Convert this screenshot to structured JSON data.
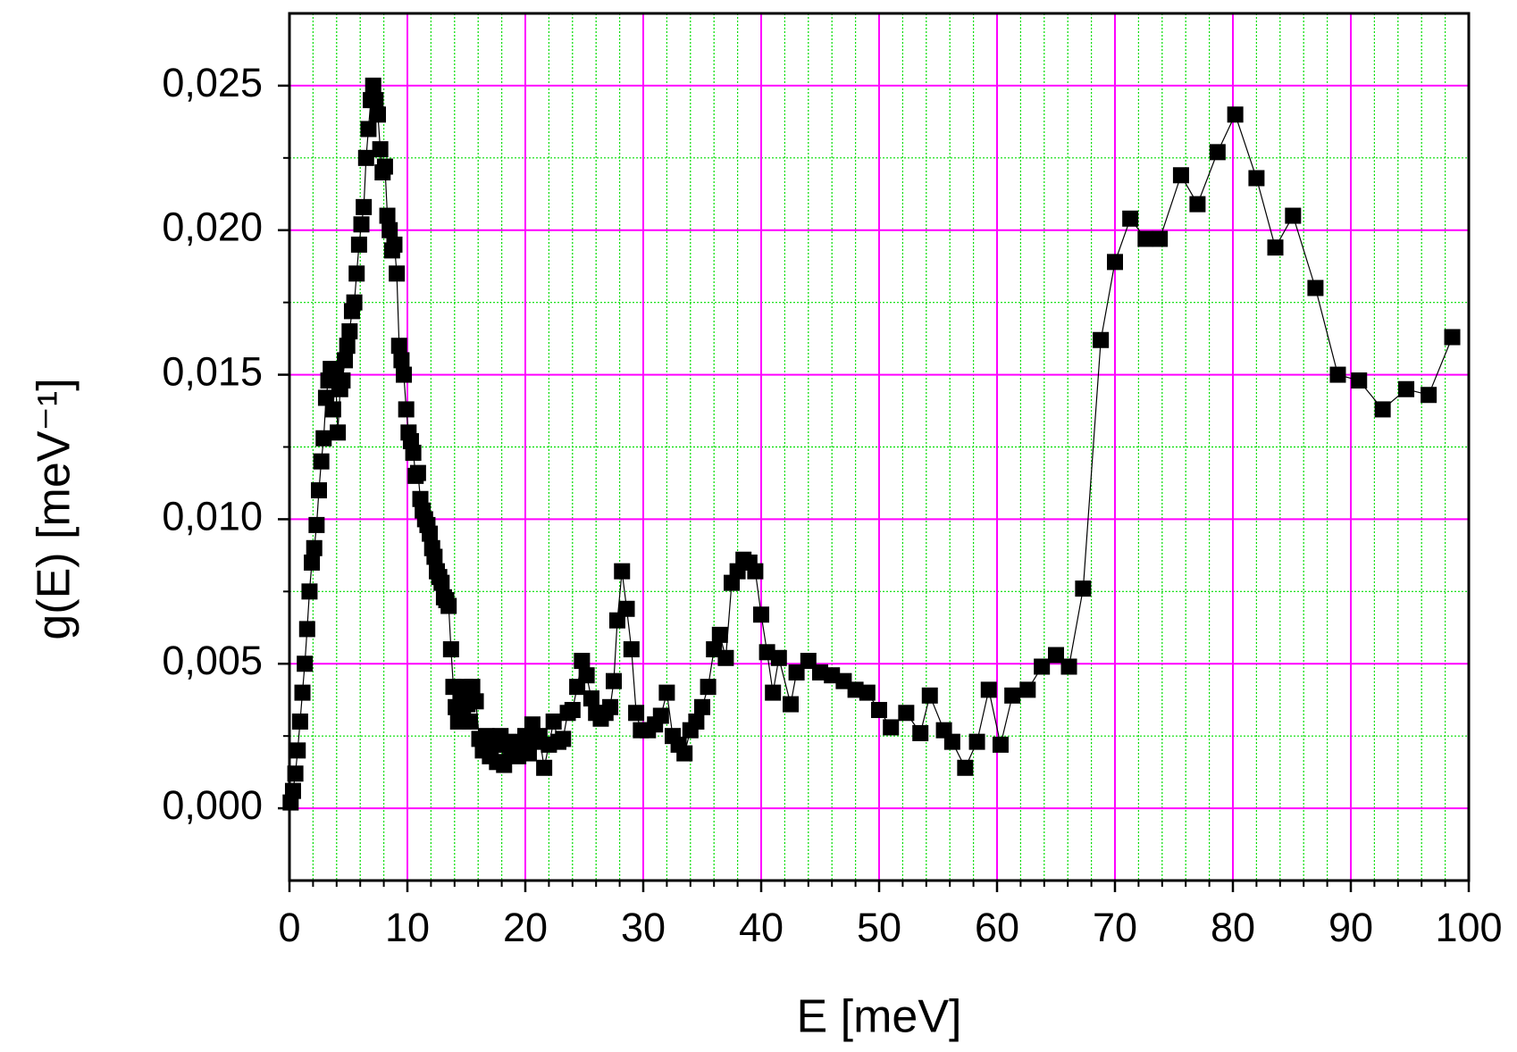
{
  "chart_data": {
    "type": "scatter",
    "xlabel": "E [meV]",
    "ylabel": "g(E) [meV⁻¹]",
    "xlim": [
      0,
      100
    ],
    "ylim": [
      -0.0025,
      0.0275
    ],
    "xticks": [
      0,
      10,
      20,
      30,
      40,
      50,
      60,
      70,
      80,
      90,
      100
    ],
    "yticks": [
      {
        "value": 0,
        "label": "0,000"
      },
      {
        "value": 0.005,
        "label": "0,005"
      },
      {
        "value": 0.01,
        "label": "0,010"
      },
      {
        "value": 0.015,
        "label": "0,015"
      },
      {
        "value": 0.02,
        "label": "0,020"
      },
      {
        "value": 0.025,
        "label": "0,025"
      }
    ],
    "grid": true,
    "grid_color": "#ff00ff",
    "minor_grid_color": "#00dd00",
    "minor_per_major_x": 5,
    "minor_per_major_y": 2,
    "series": [
      {
        "color": "#000000",
        "x": [
          0.1,
          0.3,
          0.5,
          0.7,
          0.9,
          1.1,
          1.3,
          1.5,
          1.7,
          1.9,
          2.1,
          2.3,
          2.5,
          2.7,
          2.9,
          3.1,
          3.3,
          3.5,
          3.7,
          3.9,
          4.1,
          4.3,
          4.5,
          4.7,
          4.9,
          5.1,
          5.3,
          5.5,
          5.7,
          5.9,
          6.1,
          6.3,
          6.5,
          6.7,
          6.9,
          7.1,
          7.3,
          7.5,
          7.7,
          7.9,
          8.1,
          8.3,
          8.5,
          8.7,
          8.9,
          9.1,
          9.3,
          9.5,
          9.7,
          9.9,
          10.1,
          10.3,
          10.5,
          10.7,
          10.9,
          11.1,
          11.3,
          11.5,
          11.7,
          11.9,
          12.1,
          12.3,
          12.5,
          12.7,
          12.9,
          13.1,
          13.3,
          13.5,
          13.7,
          13.9,
          14.1,
          14.3,
          14.5,
          14.7,
          14.9,
          15.1,
          15.3,
          15.5,
          15.8,
          16.1,
          16.4,
          16.7,
          17,
          17.3,
          17.6,
          17.9,
          18.2,
          18.5,
          18.8,
          19.1,
          19.4,
          19.7,
          20,
          20.3,
          20.6,
          20.9,
          21.2,
          21.6,
          22,
          22.4,
          22.8,
          23.2,
          23.6,
          24,
          24.4,
          24.8,
          25.2,
          25.6,
          26,
          26.4,
          26.8,
          27.2,
          27.5,
          27.8,
          28.2,
          28.6,
          29,
          29.4,
          29.8,
          30.4,
          31,
          31.5,
          32,
          32.5,
          33,
          33.5,
          34,
          34.5,
          35,
          35.5,
          36,
          36.5,
          37,
          37.5,
          38,
          38.5,
          39,
          39.5,
          40,
          40.5,
          41,
          41.5,
          42.5,
          43,
          44,
          45,
          46,
          47,
          48,
          49,
          50,
          51,
          52.3,
          53.5,
          54.3,
          55.5,
          56.2,
          57.3,
          58.3,
          59.3,
          60.3,
          61.3,
          62.6,
          63.8,
          65,
          66.1,
          67.3,
          68.8,
          70,
          71.3,
          72.6,
          73.8,
          75.6,
          77,
          78.7,
          80.2,
          82,
          83.6,
          85.1,
          87,
          88.9,
          90.7,
          92.7,
          94.7,
          96.6,
          98.6
        ],
        "values": [
          0.0002,
          0.0006,
          0.0012,
          0.002,
          0.003,
          0.004,
          0.005,
          0.0062,
          0.0075,
          0.0085,
          0.009,
          0.0098,
          0.011,
          0.012,
          0.0128,
          0.0142,
          0.0148,
          0.0152,
          0.0138,
          0.015,
          0.013,
          0.0145,
          0.0148,
          0.0155,
          0.016,
          0.0165,
          0.0172,
          0.0175,
          0.0185,
          0.0195,
          0.0202,
          0.0208,
          0.0225,
          0.0235,
          0.0245,
          0.025,
          0.0245,
          0.024,
          0.0228,
          0.022,
          0.0222,
          0.0205,
          0.02,
          0.0193,
          0.0195,
          0.0185,
          0.016,
          0.0155,
          0.015,
          0.0138,
          0.013,
          0.0127,
          0.0123,
          0.0115,
          0.0116,
          0.0107,
          0.0103,
          0.01,
          0.0098,
          0.0095,
          0.009,
          0.0087,
          0.0082,
          0.008,
          0.0078,
          0.0073,
          0.0072,
          0.007,
          0.0055,
          0.0042,
          0.0035,
          0.003,
          0.0038,
          0.0032,
          0.0042,
          0.0036,
          0.003,
          0.0042,
          0.0037,
          0.0024,
          0.002,
          0.0025,
          0.0018,
          0.0022,
          0.0016,
          0.0025,
          0.0015,
          0.0022,
          0.0019,
          0.0023,
          0.0018,
          0.0022,
          0.0025,
          0.0019,
          0.0029,
          0.0023,
          0.0025,
          0.0014,
          0.0022,
          0.003,
          0.0023,
          0.0024,
          0.0033,
          0.0034,
          0.0042,
          0.0051,
          0.0046,
          0.0038,
          0.0033,
          0.0031,
          0.0033,
          0.0035,
          0.0044,
          0.0065,
          0.0082,
          0.0069,
          0.0055,
          0.0033,
          0.0027,
          0.0027,
          0.0029,
          0.0032,
          0.004,
          0.0025,
          0.0022,
          0.0019,
          0.0027,
          0.003,
          0.0035,
          0.0042,
          0.0055,
          0.006,
          0.0052,
          0.0078,
          0.0082,
          0.0086,
          0.0085,
          0.0082,
          0.0067,
          0.0054,
          0.004,
          0.0052,
          0.0036,
          0.0047,
          0.0051,
          0.0047,
          0.0046,
          0.0044,
          0.0041,
          0.004,
          0.0034,
          0.0028,
          0.0033,
          0.0026,
          0.0039,
          0.0027,
          0.0023,
          0.0014,
          0.0023,
          0.0041,
          0.0022,
          0.0039,
          0.0041,
          0.0049,
          0.0053,
          0.0049,
          0.0076,
          0.0162,
          0.0189,
          0.0204,
          0.0197,
          0.0197,
          0.0219,
          0.0209,
          0.0227,
          0.024,
          0.0218,
          0.0194,
          0.0205,
          0.018,
          0.015,
          0.0148,
          0.0138,
          0.0145,
          0.0143,
          0.0163
        ]
      }
    ]
  }
}
